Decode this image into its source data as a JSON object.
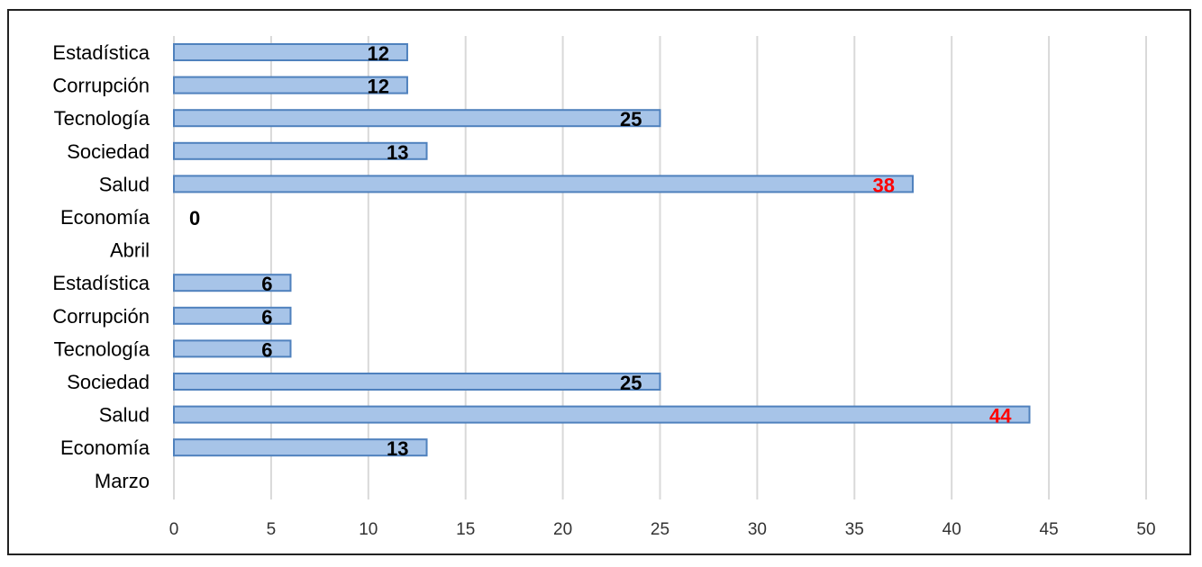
{
  "chart_data": {
    "type": "bar",
    "orientation": "horizontal",
    "categories": [
      "Estadística",
      "Corrupción",
      "Tecnología",
      "Sociedad",
      "Salud",
      "Economía",
      "Abril",
      "Estadística",
      "Corrupción",
      "Tecnología",
      "Sociedad",
      "Salud",
      "Economía",
      "Marzo"
    ],
    "values": [
      12,
      12,
      25,
      13,
      38,
      0,
      null,
      6,
      6,
      6,
      25,
      44,
      13,
      null
    ],
    "data_labels": [
      "12",
      "12",
      "25",
      "13",
      "38",
      "0",
      "",
      "6",
      "6",
      "6",
      "25",
      "44",
      "13",
      ""
    ],
    "highlighted_labels": [
      "38",
      "44"
    ],
    "title": "",
    "xlabel": "",
    "ylabel": "",
    "xlim": [
      0,
      50
    ],
    "xticks": [
      "0",
      "5",
      "10",
      "15",
      "20",
      "25",
      "30",
      "35",
      "40",
      "45",
      "50"
    ],
    "grid": "vertical",
    "legend": "none",
    "colors": {
      "bar_fill": "#a7c4e8",
      "bar_stroke": "#4f81bd",
      "grid": "#d9d9d9",
      "label_default": "#000000",
      "label_highlight": "#ff0000"
    }
  }
}
